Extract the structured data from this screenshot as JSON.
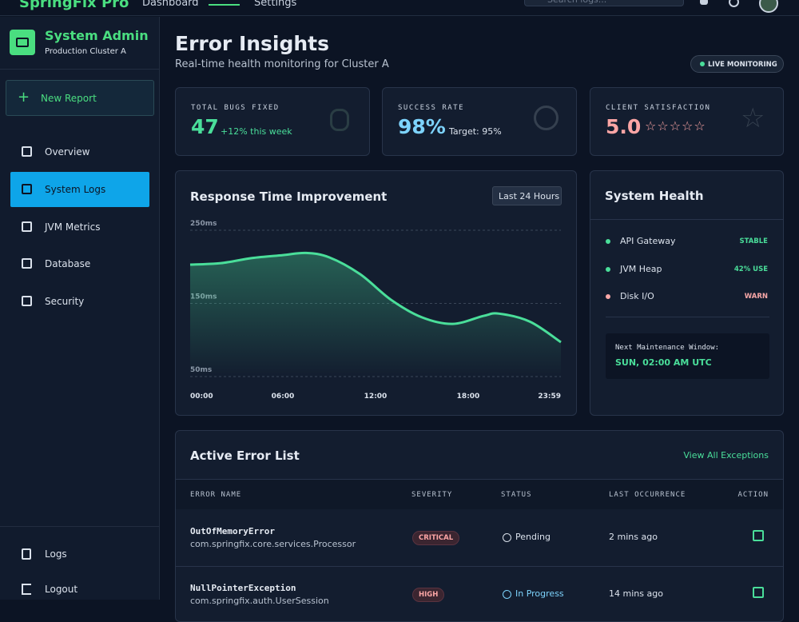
{
  "header": {
    "brand": "SpringFix Pro",
    "nav": [
      "Dashboard",
      "Settings"
    ],
    "search_placeholder": "Search logs..."
  },
  "sidebar": {
    "title": "System Admin",
    "subtitle": "Production Cluster A",
    "new_report": "New Report",
    "nav": [
      "Overview",
      "System Logs",
      "JVM Metrics",
      "Database",
      "Security"
    ],
    "active": 1,
    "bottom": [
      "Logs",
      "Logout"
    ]
  },
  "page": {
    "title": "Error Insights",
    "subtitle": "Real-time health monitoring for Cluster A",
    "badge": "LIVE MONITORING"
  },
  "stats": [
    {
      "label": "TOTAL BUGS FIXED",
      "value": "47",
      "note": "+12% this week"
    },
    {
      "label": "SUCCESS RATE",
      "value": "98%",
      "note": "Target: 95%"
    },
    {
      "label": "CLIENT SATISFACTION",
      "value": "5.0"
    }
  ],
  "chart_data": {
    "type": "area",
    "title": "Response Time Improvement",
    "range_button": "Last 24 Hours",
    "x": [
      0,
      2,
      4,
      6,
      7.5,
      9,
      11,
      13,
      15,
      17,
      19,
      20,
      22,
      24
    ],
    "values": [
      203,
      205,
      212,
      216,
      219,
      213,
      190,
      155,
      131,
      122,
      133,
      136,
      125,
      97
    ],
    "color": "#4ade9a",
    "xlim": [
      0,
      24
    ],
    "xticks": [
      {
        "value": 0,
        "label": "00:00"
      },
      {
        "value": 6,
        "label": "06:00"
      },
      {
        "value": 12,
        "label": "12:00"
      },
      {
        "value": 18,
        "label": "18:00"
      },
      {
        "value": 24,
        "label": "23:59"
      }
    ],
    "ylim": [
      50,
      250
    ],
    "yticks": [
      {
        "value": 250,
        "label": "250ms"
      },
      {
        "value": 150,
        "label": "150ms"
      },
      {
        "value": 50,
        "label": "50ms"
      }
    ],
    "grid": true
  },
  "health": {
    "title": "System Health",
    "items": [
      {
        "name": "API Gateway",
        "status": "STABLE",
        "color": "#4ade9a"
      },
      {
        "name": "JVM Heap",
        "status": "42% USE",
        "color": "#4ade9a"
      },
      {
        "name": "Disk I/O",
        "status": "WARN",
        "color": "#f9a8a8"
      }
    ],
    "maintenance_label": "Next Maintenance Window:",
    "maintenance_time": "SUN, 02:00 AM UTC"
  },
  "table": {
    "title": "Active Error List",
    "link": "View All Exceptions",
    "columns": [
      "ERROR NAME",
      "SEVERITY",
      "STATUS",
      "LAST OCCURRENCE",
      "ACTION"
    ],
    "rows": [
      {
        "name": "OutOfMemoryError",
        "source": "com.springfix.core.services.Processor",
        "severity": "CRITICAL",
        "status": "Pending",
        "time": "2 mins ago"
      },
      {
        "name": "NullPointerException",
        "source": "com.springfix.auth.UserSession",
        "severity": "HIGH",
        "status": "In Progress",
        "time": "14 mins ago"
      }
    ]
  }
}
